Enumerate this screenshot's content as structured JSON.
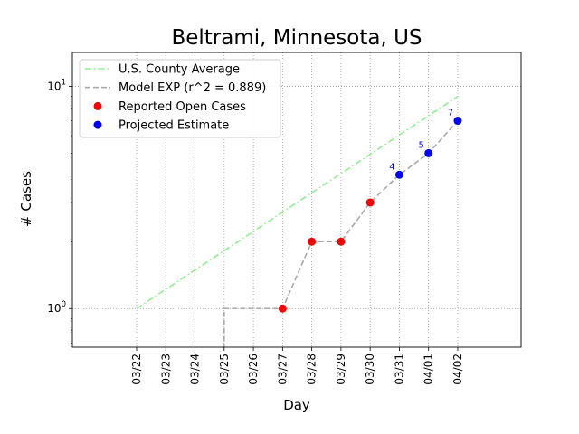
{
  "chart_data": {
    "type": "line",
    "title": "Beltrami, Minnesota, US",
    "xlabel": "Day",
    "ylabel": "# Cases",
    "yscale": "log",
    "ylim": [
      0.67,
      14.2
    ],
    "ytick_labels": [
      "10^0",
      "10^1"
    ],
    "ytick_values": [
      1,
      10
    ],
    "categories": [
      "03/22",
      "03/23",
      "03/24",
      "03/25",
      "03/26",
      "03/27",
      "03/28",
      "03/29",
      "03/30",
      "03/31",
      "04/01",
      "04/02"
    ],
    "grid": true,
    "legend_position": "top-left",
    "series": [
      {
        "name": "U.S. County Average",
        "style": "dashdot",
        "color": "#90ee90",
        "points": [
          {
            "x": "03/22",
            "y": 1.0
          },
          {
            "x": "04/02",
            "y": 9.0
          }
        ]
      },
      {
        "name": "Model EXP (r^2 = 0.889)",
        "style": "dashed",
        "color": "#a9a9a9",
        "points": [
          {
            "x": "03/25",
            "y": 0.6
          },
          {
            "x": "03/25",
            "y": 1
          },
          {
            "x": "03/26",
            "y": 1
          },
          {
            "x": "03/27",
            "y": 1
          },
          {
            "x": "03/28",
            "y": 2
          },
          {
            "x": "03/29",
            "y": 2
          },
          {
            "x": "03/30",
            "y": 3
          },
          {
            "x": "03/31",
            "y": 4
          },
          {
            "x": "04/01",
            "y": 5
          },
          {
            "x": "04/02",
            "y": 7
          }
        ]
      },
      {
        "name": "Reported Open Cases",
        "style": "marker",
        "color": "#ff0000",
        "points": [
          {
            "x": "03/27",
            "y": 1
          },
          {
            "x": "03/28",
            "y": 2
          },
          {
            "x": "03/29",
            "y": 2
          },
          {
            "x": "03/30",
            "y": 3
          }
        ]
      },
      {
        "name": "Projected Estimate",
        "style": "marker",
        "color": "#0000ff",
        "points": [
          {
            "x": "03/31",
            "y": 4,
            "label": "4"
          },
          {
            "x": "04/01",
            "y": 5,
            "label": "5"
          },
          {
            "x": "04/02",
            "y": 7,
            "label": "7"
          }
        ]
      }
    ]
  }
}
